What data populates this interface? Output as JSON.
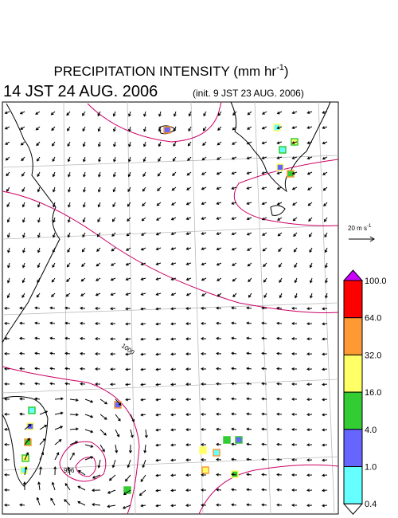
{
  "header": {
    "title": "PRECIPITATION INTENSITY (mm hr",
    "title_exponent": "-1",
    "title_end": ")",
    "valid_time": "14 JST 24 AUG. 2006",
    "init_time": "(init. 9 JST 23 AUG. 2006)"
  },
  "vector_legend": {
    "label": "20 m s",
    "exponent": "-1"
  },
  "contour_labels": [
    "1000",
    "996"
  ],
  "colorbar": {
    "labels": [
      "100.0",
      "64.0",
      "32.0",
      "16.0",
      "4.0",
      "1.0",
      "0.4"
    ],
    "colors": [
      "#cc00ff",
      "#ff0000",
      "#ff9933",
      "#ffff66",
      "#33cc33",
      "#6666ff",
      "#66ffff",
      "#ffffff"
    ]
  }
}
